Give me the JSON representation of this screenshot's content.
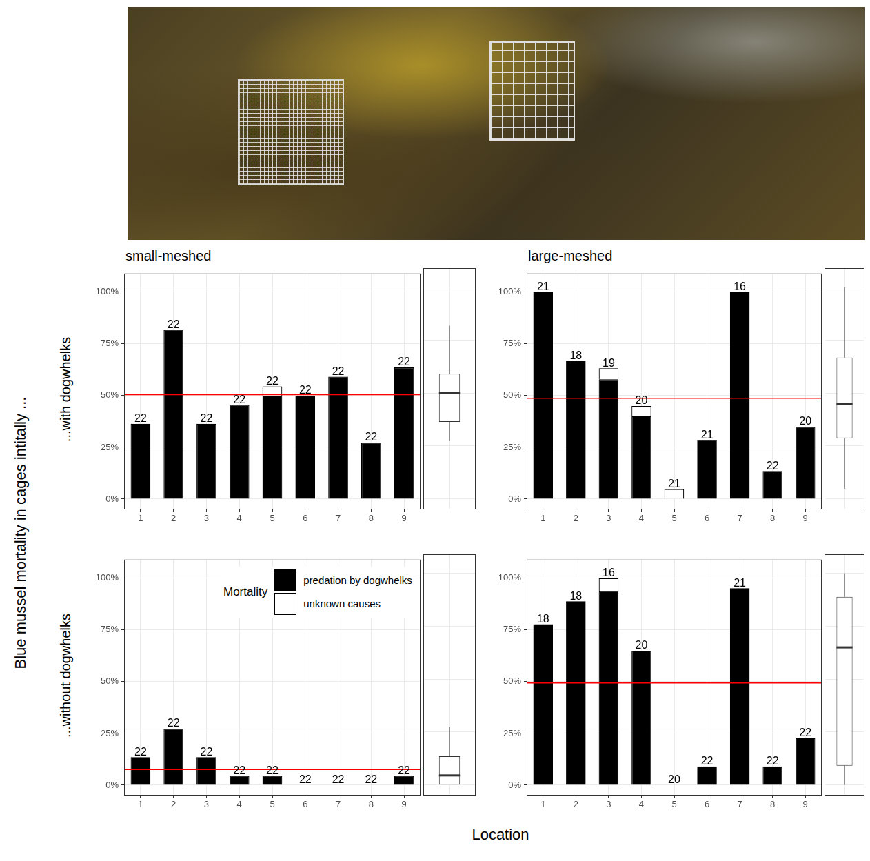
{
  "y_label": "Blue mussel mortality in cages intitally ...",
  "x_label": "Location",
  "columns": [
    "small-meshed",
    "large-meshed"
  ],
  "rows": [
    "...with dogwhelks",
    "...without dogwhelks"
  ],
  "chart_data": [
    {
      "type": "bar",
      "stacked": true,
      "grid": true,
      "categories": [
        "1",
        "2",
        "3",
        "4",
        "5",
        "6",
        "7",
        "8",
        "9"
      ],
      "series": [
        {
          "name": "predation by dogwhelks",
          "color": "#000000",
          "values": [
            36.4,
            81.8,
            36.4,
            45.5,
            50,
            50,
            59.1,
            27.3,
            63.6
          ]
        },
        {
          "name": "unknown causes",
          "color": "#ffffff",
          "values": [
            0,
            0,
            0,
            0,
            4.5,
            0,
            0,
            0,
            0
          ]
        }
      ],
      "n": [
        22,
        22,
        22,
        22,
        22,
        22,
        22,
        22,
        22
      ],
      "mean": 50.5,
      "box": {
        "min": 27.3,
        "q1": 36.4,
        "median": 50,
        "q3": 59.1,
        "max": 81.8
      },
      "ylim": [
        -5,
        109
      ],
      "yticks": [
        {
          "value": 0,
          "label": "0%"
        },
        {
          "value": 25,
          "label": "25%"
        },
        {
          "value": 50,
          "label": "50%"
        },
        {
          "value": 75,
          "label": "75%"
        },
        {
          "value": 100,
          "label": "100%"
        }
      ]
    },
    {
      "type": "bar",
      "stacked": true,
      "grid": true,
      "categories": [
        "1",
        "2",
        "3",
        "4",
        "5",
        "6",
        "7",
        "8",
        "9"
      ],
      "series": [
        {
          "name": "predation by dogwhelks",
          "color": "#000000",
          "values": [
            100,
            66.7,
            57.9,
            40,
            0,
            28.6,
            100,
            13.6,
            35
          ]
        },
        {
          "name": "unknown causes",
          "color": "#ffffff",
          "values": [
            0,
            0,
            5.3,
            5,
            4.8,
            0,
            0,
            0,
            0
          ]
        }
      ],
      "n": [
        21,
        18,
        19,
        20,
        21,
        21,
        16,
        22,
        20
      ],
      "mean": 48.7,
      "box": {
        "min": 4.8,
        "q1": 28.6,
        "median": 45,
        "q3": 66.7,
        "max": 100
      },
      "ylim": [
        -5,
        109
      ],
      "yticks": [
        {
          "value": 0,
          "label": "0%"
        },
        {
          "value": 25,
          "label": "25%"
        },
        {
          "value": 50,
          "label": "50%"
        },
        {
          "value": 75,
          "label": "75%"
        },
        {
          "value": 100,
          "label": "100%"
        }
      ]
    },
    {
      "type": "bar",
      "stacked": true,
      "grid": true,
      "categories": [
        "1",
        "2",
        "3",
        "4",
        "5",
        "6",
        "7",
        "8",
        "9"
      ],
      "series": [
        {
          "name": "predation by dogwhelks",
          "color": "#000000",
          "values": [
            13.6,
            27.3,
            13.6,
            4.5,
            4.5,
            0,
            0,
            0,
            4.5
          ]
        },
        {
          "name": "unknown causes",
          "color": "#ffffff",
          "values": [
            0,
            0,
            0,
            0,
            0,
            0,
            0,
            0,
            0
          ]
        }
      ],
      "n": [
        22,
        22,
        22,
        22,
        22,
        22,
        22,
        22,
        22
      ],
      "mean": 7.6,
      "box": {
        "min": 0,
        "q1": 0,
        "median": 4.5,
        "q3": 13.6,
        "max": 27.3
      },
      "legend": "top right",
      "legend_title": "Mortality",
      "ylim": [
        -5,
        109
      ],
      "yticks": [
        {
          "value": 0,
          "label": "0%"
        },
        {
          "value": 25,
          "label": "25%"
        },
        {
          "value": 50,
          "label": "50%"
        },
        {
          "value": 75,
          "label": "75%"
        },
        {
          "value": 100,
          "label": "100%"
        }
      ]
    },
    {
      "type": "bar",
      "stacked": true,
      "grid": true,
      "categories": [
        "1",
        "2",
        "3",
        "4",
        "5",
        "6",
        "7",
        "8",
        "9"
      ],
      "series": [
        {
          "name": "predation by dogwhelks",
          "color": "#000000",
          "values": [
            77.8,
            88.9,
            93.8,
            65,
            0,
            9.1,
            95.2,
            9.1,
            22.7
          ]
        },
        {
          "name": "unknown causes",
          "color": "#ffffff",
          "values": [
            0,
            0,
            6.2,
            0,
            0,
            0,
            0,
            0,
            0
          ]
        }
      ],
      "n": [
        18,
        18,
        16,
        20,
        20,
        22,
        21,
        22,
        22
      ],
      "mean": 49.4,
      "box": {
        "min": 0,
        "q1": 9.1,
        "median": 65,
        "q3": 88.9,
        "max": 100
      },
      "ylim": [
        -5,
        109
      ],
      "yticks": [
        {
          "value": 0,
          "label": "0%"
        },
        {
          "value": 25,
          "label": "25%"
        },
        {
          "value": 50,
          "label": "50%"
        },
        {
          "value": 75,
          "label": "75%"
        },
        {
          "value": 100,
          "label": "100%"
        }
      ]
    }
  ]
}
